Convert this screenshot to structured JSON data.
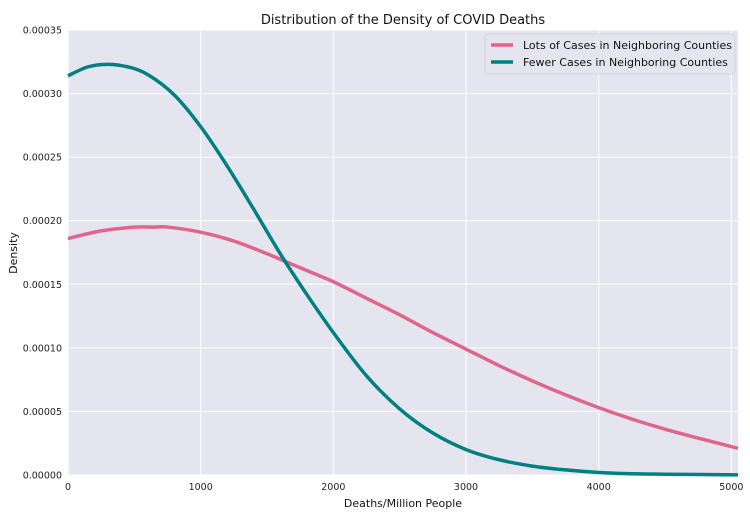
{
  "chart_data": {
    "type": "line",
    "title": "Distribution of the Density of COVID Deaths",
    "xlabel": "Deaths/Million People",
    "ylabel": "Density",
    "xlim": [
      0,
      5050
    ],
    "ylim": [
      0,
      0.00035
    ],
    "xticks": [
      0,
      1000,
      2000,
      3000,
      4000,
      5000
    ],
    "xtick_labels": [
      "0",
      "1000",
      "2000",
      "3000",
      "4000",
      "5000"
    ],
    "yticks": [
      0,
      5e-05,
      0.0001,
      0.00015,
      0.0002,
      0.00025,
      0.0003,
      0.00035
    ],
    "ytick_labels": [
      "0.00000",
      "0.00005",
      "0.00010",
      "0.00015",
      "0.00020",
      "0.00025",
      "0.00030",
      "0.00035"
    ],
    "grid": true,
    "legend_position": "top-right",
    "background_color": "#e5e5ef",
    "series": [
      {
        "name": "Lots of Cases in Neighboring Counties",
        "color": "#e0658c",
        "x": [
          0,
          250,
          500,
          650,
          750,
          1000,
          1250,
          1500,
          1750,
          2000,
          2250,
          2500,
          2750,
          3000,
          3250,
          3500,
          3750,
          4000,
          4250,
          4500,
          4750,
          5050
        ],
        "y": [
          0.000186,
          0.000192,
          0.000195,
          0.000195,
          0.000195,
          0.000191,
          0.000184,
          0.000174,
          0.000163,
          0.000152,
          0.000139,
          0.000126,
          0.000112,
          9.9e-05,
          8.6e-05,
          7.4e-05,
          6.3e-05,
          5.3e-05,
          4.4e-05,
          3.6e-05,
          2.9e-05,
          2.1e-05
        ]
      },
      {
        "name": "Fewer Cases in Neighboring Counties",
        "color": "#008080",
        "x": [
          0,
          150,
          300,
          450,
          600,
          800,
          1000,
          1200,
          1400,
          1600,
          1800,
          2000,
          2250,
          2500,
          2750,
          3000,
          3250,
          3500,
          3750,
          4000,
          4250,
          4500,
          5050
        ],
        "y": [
          0.000314,
          0.000321,
          0.000323,
          0.000321,
          0.000315,
          0.000299,
          0.000274,
          0.000243,
          0.000209,
          0.000174,
          0.000142,
          0.000112,
          7.8e-05,
          5.2e-05,
          3.3e-05,
          2e-05,
          1.2e-05,
          7e-06,
          4e-06,
          2e-06,
          1e-06,
          6e-07,
          1e-07
        ]
      }
    ]
  }
}
